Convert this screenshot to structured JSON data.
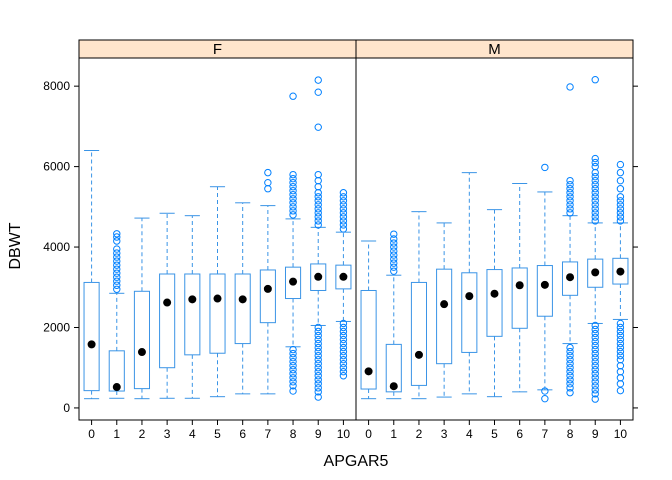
{
  "chart_data": {
    "type": "box",
    "xlabel": "APGAR5",
    "ylabel": "DBWT",
    "ylim": [
      -300,
      8700
    ],
    "yticks": [
      0,
      2000,
      4000,
      6000,
      8000
    ],
    "categories": [
      "0",
      "1",
      "2",
      "3",
      "4",
      "5",
      "6",
      "7",
      "8",
      "9",
      "10"
    ],
    "colors": {
      "box": "#3a94e6",
      "outlier": "#0080ff",
      "median": "#000000",
      "strip": "#ffe5cc"
    },
    "panels": [
      {
        "name": "F",
        "boxes": [
          {
            "x": "0",
            "lw": 230,
            "q1": 430,
            "med": 1580,
            "q3": 3120,
            "uw": 6400,
            "out": []
          },
          {
            "x": "1",
            "lw": 240,
            "q1": 420,
            "med": 520,
            "q3": 1420,
            "uw": 2850,
            "out": [
              2950,
              3050,
              3150,
              3250,
              3350,
              3450,
              3550,
              3650,
              3750,
              3850,
              3950,
              4150,
              4250,
              4330
            ]
          },
          {
            "x": "2",
            "lw": 230,
            "q1": 480,
            "med": 1390,
            "q3": 2900,
            "uw": 4720,
            "out": []
          },
          {
            "x": "3",
            "lw": 240,
            "q1": 1000,
            "med": 2620,
            "q3": 3330,
            "uw": 4840,
            "out": []
          },
          {
            "x": "4",
            "lw": 240,
            "q1": 1320,
            "med": 2700,
            "q3": 3330,
            "uw": 4780,
            "out": []
          },
          {
            "x": "5",
            "lw": 280,
            "q1": 1360,
            "med": 2720,
            "q3": 3330,
            "uw": 5500,
            "out": []
          },
          {
            "x": "6",
            "lw": 350,
            "q1": 1600,
            "med": 2700,
            "q3": 3330,
            "uw": 5100,
            "out": []
          },
          {
            "x": "7",
            "lw": 350,
            "q1": 2120,
            "med": 2960,
            "q3": 3430,
            "uw": 5030,
            "out": [
              5450,
              5600,
              5850
            ]
          },
          {
            "x": "8",
            "lw": 1520,
            "q1": 2720,
            "med": 3140,
            "q3": 3500,
            "uw": 4700,
            "out": [
              420,
              550,
              650,
              750,
              850,
              950,
              1050,
              1150,
              1250,
              1350,
              1450,
              4800,
              4900,
              5000,
              5100,
              5200,
              5300,
              5400,
              5500,
              5600,
              5700,
              5800,
              7750
            ]
          },
          {
            "x": "9",
            "lw": 2050,
            "q1": 2920,
            "med": 3260,
            "q3": 3580,
            "uw": 4490,
            "out": [
              270,
              400,
              500,
              600,
              700,
              800,
              900,
              1000,
              1100,
              1200,
              1300,
              1400,
              1500,
              1600,
              1700,
              1800,
              1900,
              2000,
              4550,
              4650,
              4750,
              4850,
              4950,
              5050,
              5150,
              5250,
              5350,
              5500,
              5650,
              5800,
              6980,
              7850,
              8150
            ]
          },
          {
            "x": "10",
            "lw": 2150,
            "q1": 2960,
            "med": 3260,
            "q3": 3550,
            "uw": 4370,
            "out": [
              800,
              900,
              1000,
              1100,
              1200,
              1300,
              1400,
              1500,
              1600,
              1700,
              1800,
              1900,
              2000,
              2100,
              4450,
              4550,
              4650,
              4750,
              4850,
              4950,
              5050,
              5150,
              5250,
              5350
            ]
          }
        ]
      },
      {
        "name": "M",
        "boxes": [
          {
            "x": "0",
            "lw": 230,
            "q1": 470,
            "med": 910,
            "q3": 2920,
            "uw": 4150,
            "out": []
          },
          {
            "x": "1",
            "lw": 230,
            "q1": 400,
            "med": 540,
            "q3": 1580,
            "uw": 3300,
            "out": [
              3400,
              3500,
              3600,
              3700,
              3800,
              3900,
              4000,
              4100,
              4200,
              4320
            ]
          },
          {
            "x": "2",
            "lw": 230,
            "q1": 560,
            "med": 1320,
            "q3": 3120,
            "uw": 4880,
            "out": []
          },
          {
            "x": "3",
            "lw": 270,
            "q1": 1100,
            "med": 2580,
            "q3": 3450,
            "uw": 4600,
            "out": []
          },
          {
            "x": "4",
            "lw": 350,
            "q1": 1380,
            "med": 2780,
            "q3": 3360,
            "uw": 5850,
            "out": []
          },
          {
            "x": "5",
            "lw": 280,
            "q1": 1780,
            "med": 2840,
            "q3": 3440,
            "uw": 4930,
            "out": []
          },
          {
            "x": "6",
            "lw": 400,
            "q1": 1980,
            "med": 3050,
            "q3": 3480,
            "uw": 5580,
            "out": []
          },
          {
            "x": "7",
            "lw": 450,
            "q1": 2280,
            "med": 3060,
            "q3": 3540,
            "uw": 5370,
            "out": [
              230,
              420,
              5980
            ]
          },
          {
            "x": "8",
            "lw": 1600,
            "q1": 2800,
            "med": 3250,
            "q3": 3630,
            "uw": 4780,
            "out": [
              380,
              500,
              600,
              700,
              800,
              900,
              1000,
              1100,
              1200,
              1300,
              1400,
              1500,
              4850,
              4950,
              5050,
              5150,
              5250,
              5350,
              5450,
              5550,
              5650,
              7980
            ]
          },
          {
            "x": "9",
            "lw": 2100,
            "q1": 3000,
            "med": 3370,
            "q3": 3700,
            "uw": 4600,
            "out": [
              220,
              350,
              450,
              550,
              650,
              750,
              850,
              950,
              1050,
              1150,
              1250,
              1350,
              1450,
              1550,
              1650,
              1750,
              1850,
              1950,
              2050,
              4650,
              4750,
              4850,
              4950,
              5050,
              5150,
              5250,
              5350,
              5450,
              5550,
              5650,
              5750,
              5850,
              6000,
              6100,
              6200,
              8160
            ]
          },
          {
            "x": "10",
            "lw": 2200,
            "q1": 3080,
            "med": 3390,
            "q3": 3720,
            "uw": 4600,
            "out": [
              430,
              600,
              750,
              900,
              1050,
              1200,
              1300,
              1400,
              1500,
              1600,
              1700,
              1800,
              1900,
              2000,
              2100,
              4650,
              4750,
              4850,
              4950,
              5050,
              5150,
              5250,
              5450,
              5650,
              5850,
              6050
            ]
          }
        ]
      }
    ]
  }
}
